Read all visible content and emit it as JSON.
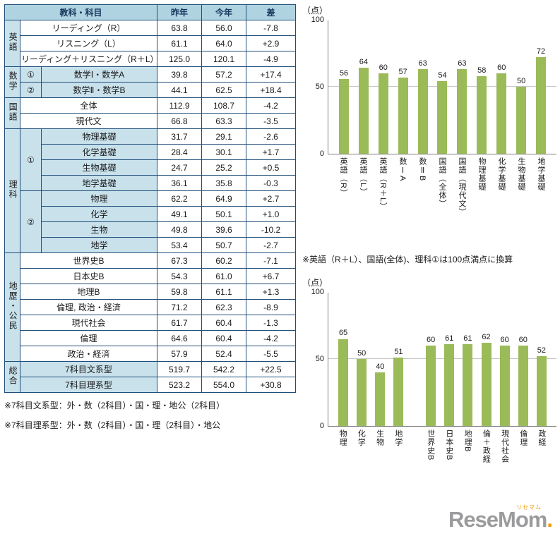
{
  "colors": {
    "table_border": "#1F4E79",
    "table_header_bg": "#AFD3E0",
    "table_shade_bg": "#C8E1EB",
    "bar_green": "#9BBB59",
    "gridline": "#C6C6C6",
    "logo_gray": "#9B9B9D",
    "logo_orange": "#F39800"
  },
  "chart_data": [
    {
      "type": "table",
      "headers": [
        "教科・科目",
        "昨年",
        "今年",
        "差"
      ],
      "sections": [
        {
          "name": "英語",
          "shaded": false,
          "rows": [
            {
              "label": "リーディング（R）",
              "last": "63.8",
              "now": "56.0",
              "diff": "-7.8"
            },
            {
              "label": "リスニング（L）",
              "last": "61.1",
              "now": "64.0",
              "diff": "+2.9"
            },
            {
              "label": "リーディング＋リスニング（R＋L）",
              "last": "125.0",
              "now": "120.1",
              "diff": "-4.9"
            }
          ]
        },
        {
          "name": "数学",
          "shaded": true,
          "groups": [
            {
              "mark": "①",
              "rows": [
                {
                  "label": "数学Ⅰ・数学A",
                  "last": "39.8",
                  "now": "57.2",
                  "diff": "+17.4"
                }
              ]
            },
            {
              "mark": "②",
              "rows": [
                {
                  "label": "数学Ⅱ・数学B",
                  "last": "44.1",
                  "now": "62.5",
                  "diff": "+18.4"
                }
              ]
            }
          ]
        },
        {
          "name": "国語",
          "shaded": false,
          "rows": [
            {
              "label": "全体",
              "last": "112.9",
              "now": "108.7",
              "diff": "-4.2"
            },
            {
              "label": "現代文",
              "last": "66.8",
              "now": "63.3",
              "diff": "-3.5"
            }
          ]
        },
        {
          "name": "理科",
          "shaded": true,
          "groups": [
            {
              "mark": "①",
              "rows": [
                {
                  "label": "物理基礎",
                  "last": "31.7",
                  "now": "29.1",
                  "diff": "-2.6"
                },
                {
                  "label": "化学基礎",
                  "last": "28.4",
                  "now": "30.1",
                  "diff": "+1.7"
                },
                {
                  "label": "生物基礎",
                  "last": "24.7",
                  "now": "25.2",
                  "diff": "+0.5"
                },
                {
                  "label": "地学基礎",
                  "last": "36.1",
                  "now": "35.8",
                  "diff": "-0.3"
                }
              ]
            },
            {
              "mark": "②",
              "rows": [
                {
                  "label": "物理",
                  "last": "62.2",
                  "now": "64.9",
                  "diff": "+2.7"
                },
                {
                  "label": "化学",
                  "last": "49.1",
                  "now": "50.1",
                  "diff": "+1.0"
                },
                {
                  "label": "生物",
                  "last": "49.8",
                  "now": "39.6",
                  "diff": "-10.2"
                },
                {
                  "label": "地学",
                  "last": "53.4",
                  "now": "50.7",
                  "diff": "-2.7"
                }
              ]
            }
          ]
        },
        {
          "name": "地歴・公民",
          "shaded": false,
          "rows": [
            {
              "label": "世界史B",
              "last": "67.3",
              "now": "60.2",
              "diff": "-7.1"
            },
            {
              "label": "日本史B",
              "last": "54.3",
              "now": "61.0",
              "diff": "+6.7"
            },
            {
              "label": "地理B",
              "last": "59.8",
              "now": "61.1",
              "diff": "+1.3"
            },
            {
              "label": "倫理, 政治・経済",
              "last": "71.2",
              "now": "62.3",
              "diff": "-8.9"
            },
            {
              "label": "現代社会",
              "last": "61.7",
              "now": "60.4",
              "diff": "-1.3"
            },
            {
              "label": "倫理",
              "last": "64.6",
              "now": "60.4",
              "diff": "-4.2"
            },
            {
              "label": "政治・経済",
              "last": "57.9",
              "now": "52.4",
              "diff": "-5.5"
            }
          ]
        },
        {
          "name": "総合",
          "shaded": true,
          "rows": [
            {
              "label": "7科目文系型",
              "last": "519.7",
              "now": "542.2",
              "diff": "+22.5"
            },
            {
              "label": "7科目理系型",
              "last": "523.2",
              "now": "554.0",
              "diff": "+30.8"
            }
          ]
        }
      ],
      "footnotes": [
        "※7科目文系型：外・数（2科目）・国・理・地公（2科目）",
        "※7科目理系型：外・数（2科目）・国・理（2科目）・地公"
      ]
    },
    {
      "type": "bar",
      "unit": "（点）",
      "ylim": [
        0,
        100
      ],
      "yticks": [
        0,
        50,
        100
      ],
      "categories": [
        "英語（R）",
        "英語（L）",
        "英語（R＋L）",
        "数ⅠA",
        "数ⅡB",
        "国語（全体）",
        "国語（現代文）",
        "物理基礎",
        "化学基礎",
        "生物基礎",
        "地学基礎"
      ],
      "values": [
        56,
        64,
        60,
        57,
        63,
        54,
        63,
        58,
        60,
        50,
        72
      ],
      "bar_color": "#9BBB59",
      "gap_after_index": null,
      "footnote": "※英語（R＋L）、国語(全体)、理科①は100点満点に換算"
    },
    {
      "type": "bar",
      "unit": "（点）",
      "ylim": [
        0,
        100
      ],
      "yticks": [
        0,
        50,
        100
      ],
      "categories": [
        "物理",
        "化学",
        "生物",
        "地学",
        "世界史B",
        "日本史B",
        "地理B",
        "倫＋政経",
        "現代社会",
        "倫理",
        "政経"
      ],
      "values": [
        65,
        50,
        40,
        51,
        60,
        61,
        61,
        62,
        60,
        60,
        52
      ],
      "bar_color": "#9BBB59",
      "gap_after_index": 3,
      "footnote": ""
    }
  ],
  "logo": {
    "main": "ReseMom",
    "dot": ".",
    "kana": "リセマム"
  }
}
